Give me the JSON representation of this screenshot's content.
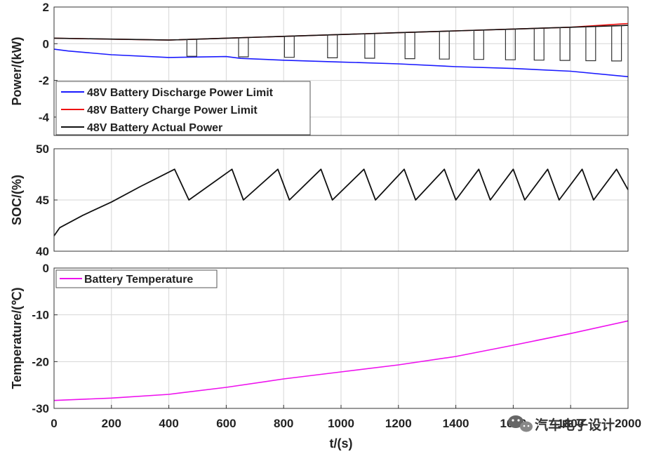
{
  "chart_data": [
    {
      "type": "line",
      "panel": "power",
      "ylabel": "Power/(kW)",
      "ylim": [
        -5,
        2
      ],
      "yticks": [
        2,
        0,
        -2,
        -4
      ],
      "xlim": [
        0,
        2000
      ],
      "grid": true,
      "legend_position": "bottom-left",
      "series": [
        {
          "name": "48V Battery Discharge Power Limit",
          "color": "#1a1aff",
          "x": [
            0,
            50,
            200,
            400,
            600,
            650,
            800,
            1000,
            1200,
            1400,
            1600,
            1800,
            2000
          ],
          "y": [
            -0.3,
            -0.4,
            -0.6,
            -0.75,
            -0.7,
            -0.8,
            -0.9,
            -1.0,
            -1.1,
            -1.25,
            -1.35,
            -1.5,
            -1.8
          ]
        },
        {
          "name": "48V Battery Charge Power Limit",
          "color": "#ee1111",
          "x": [
            0,
            200,
            400,
            600,
            800,
            1000,
            1200,
            1400,
            1600,
            1800,
            2000
          ],
          "y": [
            0.3,
            0.25,
            0.2,
            0.3,
            0.4,
            0.5,
            0.6,
            0.7,
            0.8,
            0.9,
            1.1
          ]
        },
        {
          "name": "48V Battery Actual Power",
          "color": "#111111",
          "x": [
            0,
            400,
            600,
            800,
            1000,
            1200,
            1400,
            1600,
            1800,
            2000
          ],
          "y": [
            0.3,
            0.2,
            0.3,
            0.4,
            0.5,
            0.6,
            0.7,
            0.8,
            0.9,
            1.0
          ]
        }
      ]
    },
    {
      "type": "line",
      "panel": "soc",
      "ylabel": "SOC/(%)",
      "ylim": [
        40,
        50
      ],
      "yticks": [
        50,
        45,
        40
      ],
      "xlim": [
        0,
        2000
      ],
      "grid": true,
      "series": [
        {
          "name": "SOC",
          "color": "#111111",
          "x": [
            0,
            20,
            100,
            200,
            300,
            420,
            470,
            620,
            660,
            780,
            820,
            930,
            970,
            1080,
            1120,
            1220,
            1260,
            1360,
            1400,
            1480,
            1520,
            1600,
            1640,
            1720,
            1760,
            1840,
            1880,
            1960,
            2000
          ],
          "y": [
            41.5,
            42.3,
            43.5,
            44.8,
            46.3,
            48,
            45,
            48,
            45,
            48,
            45,
            48,
            45,
            48,
            45,
            48,
            45,
            48,
            45,
            48,
            45,
            48,
            45,
            48,
            45,
            48,
            45,
            48,
            46
          ]
        }
      ]
    },
    {
      "type": "line",
      "panel": "temperature",
      "ylabel": "Temperature/(℃)",
      "xlabel": "t/(s)",
      "ylim": [
        -30,
        0
      ],
      "yticks": [
        0,
        -10,
        -20,
        -30
      ],
      "xlim": [
        0,
        2000
      ],
      "xticks": [
        0,
        200,
        400,
        600,
        800,
        1000,
        1200,
        1400,
        1600,
        1800,
        2000
      ],
      "grid": true,
      "legend_position": "top-left",
      "series": [
        {
          "name": "Battery Temperature",
          "color": "#ee11ee",
          "x": [
            0,
            200,
            400,
            600,
            800,
            1000,
            1200,
            1400,
            1600,
            1800,
            2000
          ],
          "y": [
            -28.3,
            -27.8,
            -27,
            -25.5,
            -23.7,
            -22.2,
            -20.7,
            -18.9,
            -16.5,
            -14,
            -11.3
          ]
        }
      ]
    }
  ],
  "watermark": "汽车电子设计"
}
